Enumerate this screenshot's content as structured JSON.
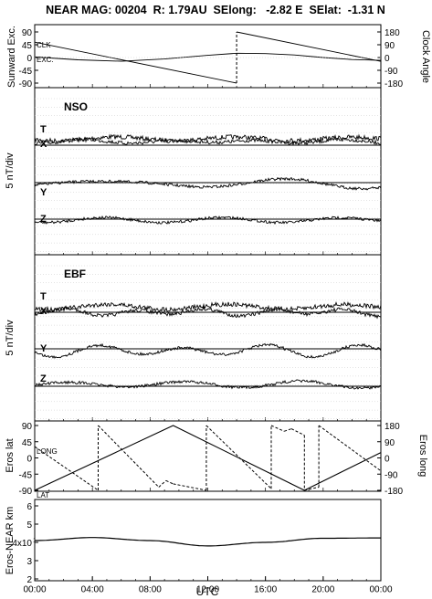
{
  "chart_data": {
    "type": "line",
    "title": "NEAR MAG: 00204  R: 1.79AU  SElong:   -2.82 E  SElat:  -1.31 N",
    "xlabel": "UTC",
    "x_ticks": [
      "00:00",
      "04:00",
      "08:00",
      "12:00",
      "16:00",
      "20:00",
      "00:00"
    ],
    "xlim_hours": [
      0,
      24
    ],
    "panels": [
      {
        "id": "sunward-clock",
        "ylabel_left": "Sunward Exc.",
        "ylabel_right": "Clock Angle",
        "left_ticks": [
          "90",
          "45",
          "0",
          "-45",
          "-90"
        ],
        "right_ticks": [
          "180",
          "90",
          "0",
          "-90",
          "-180"
        ],
        "ylim_left": [
          -90,
          90
        ],
        "ylim_right": [
          -180,
          180
        ],
        "series": [
          {
            "name": "CLK",
            "axis": "right",
            "x": [
              0,
              14,
              14,
              24
            ],
            "y": [
              108,
              -180,
              180,
              -27
            ]
          },
          {
            "name": "EXC.",
            "axis": "left",
            "x": [
              0,
              3,
              6,
              9,
              12,
              14,
              16,
              18,
              20,
              22,
              24
            ],
            "y": [
              2,
              -8,
              -13,
              -5,
              8,
              15,
              14,
              9,
              0,
              -7,
              -10
            ]
          }
        ]
      },
      {
        "id": "nso",
        "tag": "NSO",
        "ylabel": "5 nT/div",
        "traces": [
          "T",
          "X",
          "Y",
          "Z"
        ]
      },
      {
        "id": "ebf",
        "tag": "EBF",
        "ylabel": "5 nT/div",
        "traces": [
          "T",
          "X",
          "Y",
          "Z"
        ]
      },
      {
        "id": "eros-latlong",
        "ylabel_left": "Eros lat",
        "ylabel_right": "Eros long",
        "left_ticks": [
          "90",
          "45",
          "0",
          "-45",
          "-90"
        ],
        "right_ticks": [
          "180",
          "90",
          "0",
          "-90",
          "-180"
        ],
        "ylim_left": [
          -90,
          90
        ],
        "ylim_right": [
          -180,
          180
        ],
        "series": [
          {
            "name": "LAT",
            "axis": "left",
            "x": [
              0,
              9.6,
              18.7,
              24
            ],
            "y": [
              -90,
              90,
              -90,
              15
            ]
          },
          {
            "name": "LONG",
            "axis": "right",
            "x": [
              0,
              4.4,
              4.4,
              8.6,
              9.1,
              9.6,
              11.9,
              11.9,
              16.4,
              16.4,
              17.3,
              17.8,
              18.7,
              18.7,
              19.7,
              19.7,
              24
            ],
            "y": [
              63,
              -180,
              180,
              -162,
              -126,
              -144,
              -180,
              180,
              -171,
              180,
              148,
              162,
              126,
              -180,
              -162,
              180,
              -72
            ]
          }
        ]
      },
      {
        "id": "eros-near-km",
        "ylabel": "Eros-NEAR km",
        "y_ticks": [
          "6",
          "5",
          "4x10",
          "3",
          "2"
        ],
        "y_exponent": "1",
        "series": [
          {
            "name": "range",
            "x": [
              0,
              4,
              8,
              12,
              16,
              20,
              24
            ],
            "y": [
              4.05,
              4.22,
              4.05,
              3.75,
              3.95,
              4.18,
              4.2
            ]
          }
        ]
      }
    ]
  }
}
